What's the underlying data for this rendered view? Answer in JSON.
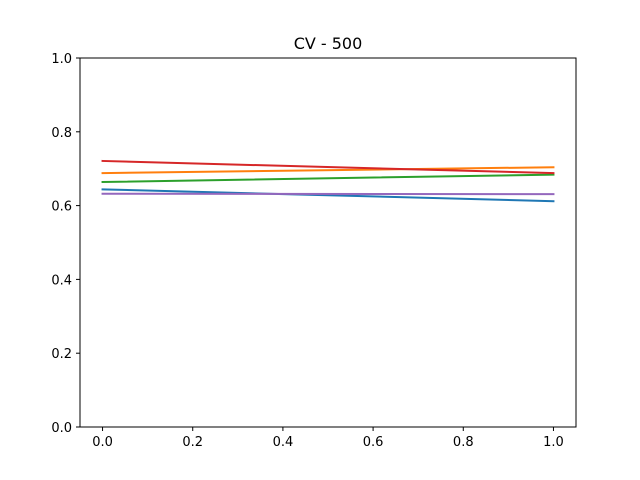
{
  "chart_data": {
    "type": "line",
    "title": "CV - 500",
    "xlabel": "",
    "ylabel": "",
    "xlim": [
      -0.05,
      1.05
    ],
    "ylim": [
      0.0,
      1.0
    ],
    "x_ticks": [
      0.0,
      0.2,
      0.4,
      0.6,
      0.8,
      1.0
    ],
    "x_tick_labels": [
      "0.0",
      "0.2",
      "0.4",
      "0.6",
      "0.8",
      "1.0"
    ],
    "y_ticks": [
      0.0,
      0.2,
      0.4,
      0.6,
      0.8,
      1.0
    ],
    "y_tick_labels": [
      "0.0",
      "0.2",
      "0.4",
      "0.6",
      "0.8",
      "1.0"
    ],
    "grid": false,
    "legend": "none",
    "x": [
      0.0,
      1.0
    ],
    "series": [
      {
        "color": "#1f77b4",
        "values": [
          0.644,
          0.612
        ]
      },
      {
        "color": "#ff7f0e",
        "values": [
          0.688,
          0.704
        ]
      },
      {
        "color": "#2ca02c",
        "values": [
          0.664,
          0.684
        ]
      },
      {
        "color": "#d62728",
        "values": [
          0.721,
          0.688
        ]
      },
      {
        "color": "#9467bd",
        "values": [
          0.632,
          0.631
        ]
      }
    ]
  }
}
